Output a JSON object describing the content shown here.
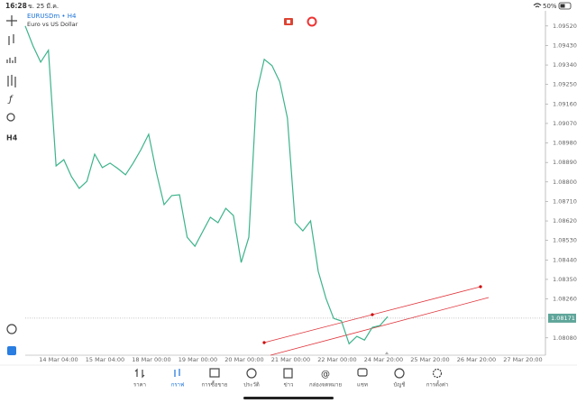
{
  "status_bar": {
    "time": "16:28",
    "date": "ข. 25 มี.ค.",
    "battery": "50%"
  },
  "toolbar": {
    "timeframe": "H4"
  },
  "chart_data": {
    "type": "line",
    "title": "EURUSDm • H4",
    "subtitle": "Euro vs US Dollar",
    "color": "#3cb38b",
    "values": [
      1.0952,
      1.09428,
      1.09353,
      1.09408,
      1.08874,
      1.08903,
      1.08824,
      1.0877,
      1.08803,
      1.08928,
      1.08866,
      1.08887,
      1.08862,
      1.08833,
      1.08887,
      1.08949,
      1.0902,
      1.08845,
      1.08695,
      1.08737,
      1.08741,
      1.08545,
      1.08503,
      1.0857,
      1.08637,
      1.08612,
      1.08678,
      1.08645,
      1.08428,
      1.08545,
      1.09212,
      1.09366,
      1.09337,
      1.09262,
      1.09095,
      1.08612,
      1.08574,
      1.0862,
      1.08387,
      1.08262,
      1.0817,
      1.08158,
      1.08053,
      1.08087,
      1.0807,
      1.08128,
      1.08137,
      1.08178
    ],
    "x_labels": [
      "14 Mar 04:00",
      "15 Mar 04:00",
      "18 Mar 00:00",
      "19 Mar 00:00",
      "20 Mar 00:00",
      "21 Mar 00:00",
      "22 Mar 00:00",
      "24 Mar 20:00",
      "25 Mar 20:00",
      "26 Mar 20:00",
      "27 Mar 20:00"
    ],
    "ylim": [
      1.08,
      1.0959
    ],
    "yticks": [
      {
        "value": 1.0952,
        "label": "1.09520"
      },
      {
        "value": 1.0943,
        "label": "1.09430"
      },
      {
        "value": 1.0934,
        "label": "1.09340"
      },
      {
        "value": 1.0925,
        "label": "1.09250"
      },
      {
        "value": 1.0916,
        "label": "1.09160"
      },
      {
        "value": 1.0907,
        "label": "1.09070"
      },
      {
        "value": 1.0898,
        "label": "1.08980"
      },
      {
        "value": 1.0889,
        "label": "1.08890"
      },
      {
        "value": 1.088,
        "label": "1.08800"
      },
      {
        "value": 1.0871,
        "label": "1.08710"
      },
      {
        "value": 1.0862,
        "label": "1.08620"
      },
      {
        "value": 1.0853,
        "label": "1.08530"
      },
      {
        "value": 1.0844,
        "label": "1.08440"
      },
      {
        "value": 1.0835,
        "label": "1.08350"
      },
      {
        "value": 1.0826,
        "label": "1.08260"
      },
      {
        "value": 1.0808,
        "label": "1.08080"
      }
    ],
    "current_price": 1.08171
  },
  "tabs": [
    "ราคา",
    "กราฟ",
    "การซื้อขาย",
    "ประวัติ",
    "ข่าว",
    "กล่องจดหมาย",
    "แชท",
    "บัญชี",
    "การตั้งค่า"
  ]
}
